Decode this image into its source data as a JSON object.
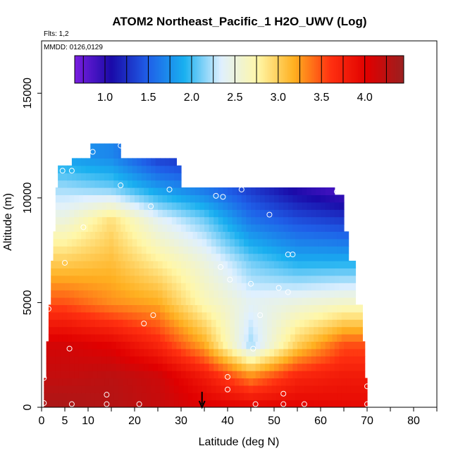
{
  "chart_data": {
    "type": "heatmap",
    "title": "ATOM2 Northeast_Pacific_1 H2O_UWV (Log)",
    "flights_label": "Flts: 1,2",
    "mmdd_label": "MMDD: 0126,0129",
    "xlabel": "Latitude (deg N)",
    "ylabel": "Altitude (m)",
    "xlim": [
      0,
      85
    ],
    "ylim": [
      0,
      17500
    ],
    "x_ticks": [
      0,
      5,
      10,
      20,
      30,
      40,
      50,
      60,
      70,
      80
    ],
    "x_tick_labels": [
      "0",
      "5",
      "10",
      "20",
      "30",
      "40",
      "50",
      "60",
      "70",
      "80"
    ],
    "y_ticks": [
      0,
      5000,
      10000,
      15000
    ],
    "y_tick_labels": [
      "0",
      "5000",
      "10000",
      "15000"
    ],
    "colorbar": {
      "range": [
        0.65,
        4.45
      ],
      "tick_values": [
        1.0,
        1.5,
        2.0,
        2.5,
        3.0,
        3.5,
        4.0
      ],
      "tick_labels": [
        "1.0",
        "1.5",
        "2.0",
        "2.5",
        "3.0",
        "3.5",
        "4.0"
      ],
      "colors": [
        "#7a1fe0",
        "#1a0aa8",
        "#1f5fe8",
        "#19b0f0",
        "#dff0ff",
        "#fff7a8",
        "#ffb020",
        "#ff3010",
        "#e00000",
        "#9a2020"
      ]
    },
    "coverage": [
      {
        "alt": 0,
        "xmin": 0.5,
        "xmax": 70
      },
      {
        "alt": 1500,
        "xmin": 0.5,
        "xmax": 70
      },
      {
        "alt": 3000,
        "xmin": 1,
        "xmax": 69.5
      },
      {
        "alt": 5000,
        "xmin": 1.5,
        "xmax": 69
      },
      {
        "alt": 7000,
        "xmin": 2,
        "xmax": 67.5
      },
      {
        "alt": 8500,
        "xmin": 2.5,
        "xmax": 66
      },
      {
        "alt": 10000,
        "xmin": 3,
        "xmax": 65
      },
      {
        "alt": 10400,
        "xmin": 3,
        "xmax": 63
      },
      {
        "alt": 10500,
        "xmin": 3.5,
        "xmax": 52
      },
      {
        "alt": 11400,
        "xmin": 3.5,
        "xmax": 30
      },
      {
        "alt": 11800,
        "xmin": 6.5,
        "xmax": 29
      },
      {
        "alt": 12500,
        "xmin": 10.5,
        "xmax": 17
      }
    ],
    "profile_lats": [
      5,
      15,
      25,
      35,
      45,
      55,
      65
    ],
    "profile_alts": [
      0,
      1500,
      3000,
      5000,
      7000,
      9000,
      10500,
      12000
    ],
    "values": [
      [
        4.35,
        4.3,
        4.2,
        4.05,
        4.0,
        4.0,
        3.95
      ],
      [
        4.2,
        4.25,
        4.15,
        3.8,
        3.3,
        3.7,
        3.8
      ],
      [
        4.1,
        4.0,
        3.7,
        3.2,
        2.2,
        3.0,
        3.5
      ],
      [
        3.5,
        3.3,
        3.2,
        2.7,
        2.4,
        2.5,
        2.6
      ],
      [
        3.0,
        3.1,
        2.8,
        2.5,
        2.1,
        1.9,
        1.9
      ],
      [
        2.5,
        2.9,
        2.4,
        2.1,
        1.6,
        1.4,
        1.3
      ],
      [
        2.2,
        2.1,
        1.8,
        1.6,
        1.3,
        1.0,
        0.8
      ],
      [
        1.8,
        1.7,
        1.3,
        1.2,
        1.2,
        1.2,
        1.2
      ]
    ],
    "samples": [
      {
        "lat": 0.5,
        "alt": 200
      },
      {
        "lat": 6.5,
        "alt": 150
      },
      {
        "lat": 14,
        "alt": 150
      },
      {
        "lat": 21,
        "alt": 150
      },
      {
        "lat": 46,
        "alt": 150
      },
      {
        "lat": 52,
        "alt": 150
      },
      {
        "lat": 56.5,
        "alt": 150
      },
      {
        "lat": 70,
        "alt": 150
      },
      {
        "lat": 14,
        "alt": 600
      },
      {
        "lat": 52,
        "alt": 650
      },
      {
        "lat": 40,
        "alt": 850
      },
      {
        "lat": 70,
        "alt": 1000
      },
      {
        "lat": 0.5,
        "alt": 1400
      },
      {
        "lat": 40,
        "alt": 1450
      },
      {
        "lat": 6,
        "alt": 2800
      },
      {
        "lat": 45.5,
        "alt": 2800
      },
      {
        "lat": 22,
        "alt": 4000
      },
      {
        "lat": 24,
        "alt": 4400
      },
      {
        "lat": 47,
        "alt": 4400
      },
      {
        "lat": 1.5,
        "alt": 4700
      },
      {
        "lat": 53,
        "alt": 5500
      },
      {
        "lat": 51,
        "alt": 5700
      },
      {
        "lat": 45,
        "alt": 5900
      },
      {
        "lat": 40.5,
        "alt": 6100
      },
      {
        "lat": 38.5,
        "alt": 6700
      },
      {
        "lat": 5,
        "alt": 6900
      },
      {
        "lat": 53,
        "alt": 7300
      },
      {
        "lat": 54,
        "alt": 7300
      },
      {
        "lat": 9,
        "alt": 8600
      },
      {
        "lat": 49,
        "alt": 9200
      },
      {
        "lat": 23.5,
        "alt": 9600
      },
      {
        "lat": 37.5,
        "alt": 10100
      },
      {
        "lat": 39,
        "alt": 10050
      },
      {
        "lat": 43,
        "alt": 10400
      },
      {
        "lat": 27.5,
        "alt": 10400
      },
      {
        "lat": 63.5,
        "alt": 10300
      },
      {
        "lat": 17,
        "alt": 10600
      },
      {
        "lat": 1,
        "alt": 10300
      },
      {
        "lat": 4.5,
        "alt": 11300
      },
      {
        "lat": 6.5,
        "alt": 11300
      },
      {
        "lat": 11,
        "alt": 12200
      },
      {
        "lat": 17,
        "alt": 12500
      }
    ],
    "marker_latitude": 34.5
  }
}
